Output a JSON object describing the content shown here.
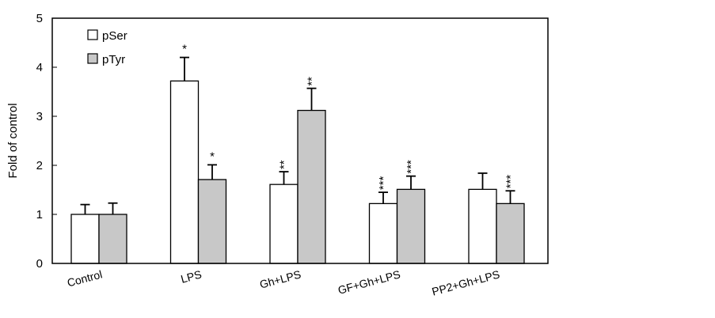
{
  "chart_data": {
    "type": "bar",
    "title": "",
    "xlabel": "",
    "ylabel": "Fold of control",
    "ylim": [
      0,
      5
    ],
    "yticks": [
      0,
      1,
      2,
      3,
      4,
      5
    ],
    "grid": false,
    "legend_position": "top-left",
    "categories": [
      "Control",
      "LPS",
      "Gh+LPS",
      "GF+Gh+LPS",
      "PP2+Gh+LPS"
    ],
    "series": [
      {
        "name": "pSer",
        "color": "#ffffff",
        "values": [
          1.0,
          3.72,
          1.61,
          1.22,
          1.51
        ],
        "errors": [
          0.2,
          0.48,
          0.26,
          0.23,
          0.33
        ],
        "significance": [
          "",
          "*",
          "**",
          "***",
          ""
        ]
      },
      {
        "name": "pTyr",
        "color": "#c8c8c8",
        "values": [
          1.0,
          1.71,
          3.12,
          1.51,
          1.22
        ],
        "errors": [
          0.23,
          0.3,
          0.45,
          0.27,
          0.26
        ],
        "significance": [
          "",
          "*",
          "**",
          "***",
          "***"
        ]
      }
    ]
  }
}
